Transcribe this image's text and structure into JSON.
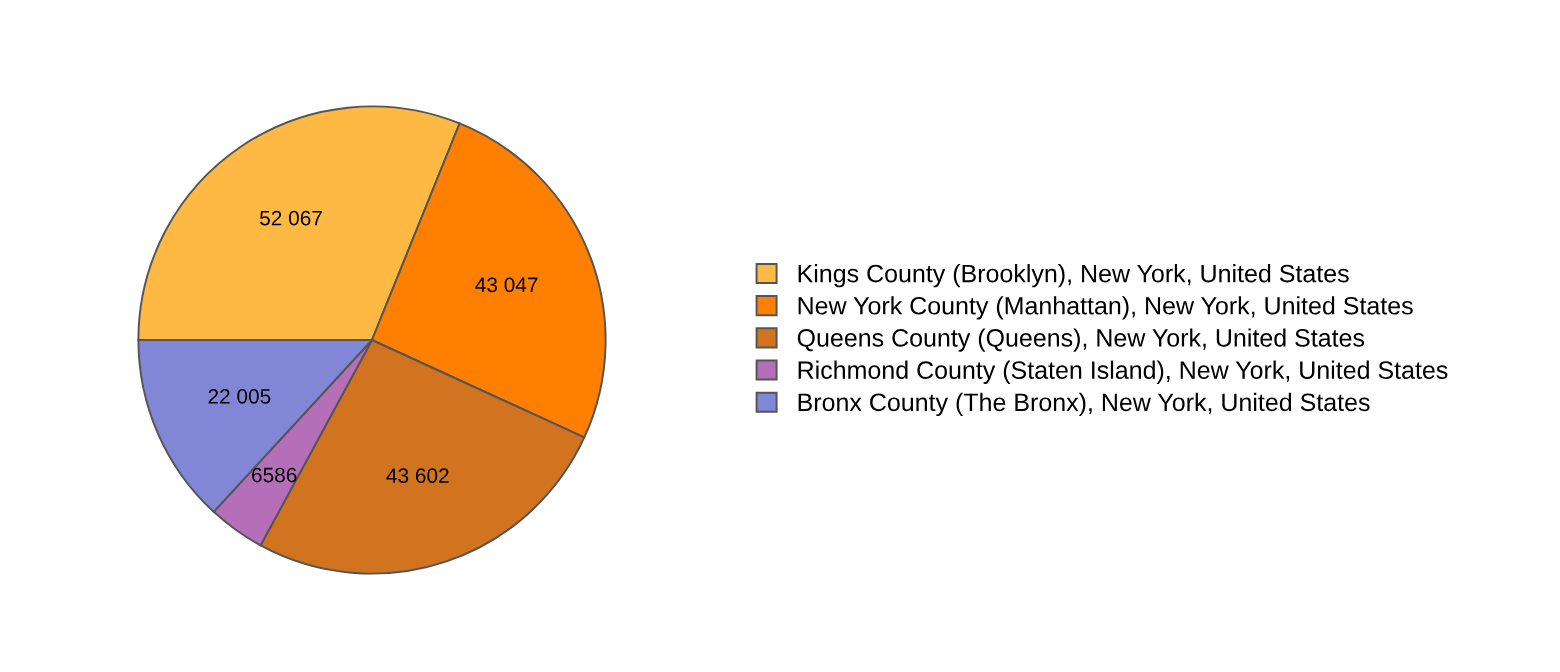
{
  "chart_data": {
    "type": "pie",
    "categories": [
      "Kings County (Brooklyn), New York, United States",
      "New York County (Manhattan), New York, United States",
      "Queens County (Queens), New York, United States",
      "Richmond County (Staten Island), New York, United States",
      "Bronx County (The Bronx), New York, United States"
    ],
    "values": [
      52067,
      43047,
      43602,
      6586,
      22005
    ],
    "value_labels": [
      "52 067",
      "43 047",
      "43 602",
      "6586",
      "22 005"
    ],
    "colors": [
      "#fdb944",
      "#ff8000",
      "#d1731f",
      "#b46fb8",
      "#8187d6"
    ],
    "legend": "right"
  }
}
